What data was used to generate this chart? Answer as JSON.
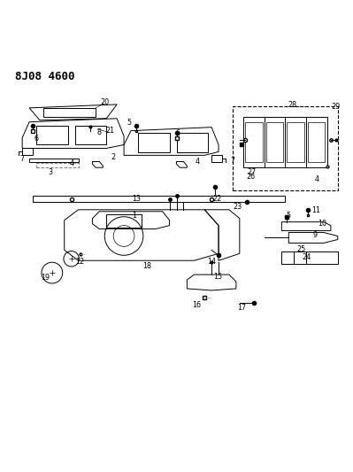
{
  "title": "8J08 4600",
  "bg_color": "#ffffff",
  "line_color": "#000000",
  "title_fontsize": 9,
  "title_fontfamily": "monospace"
}
